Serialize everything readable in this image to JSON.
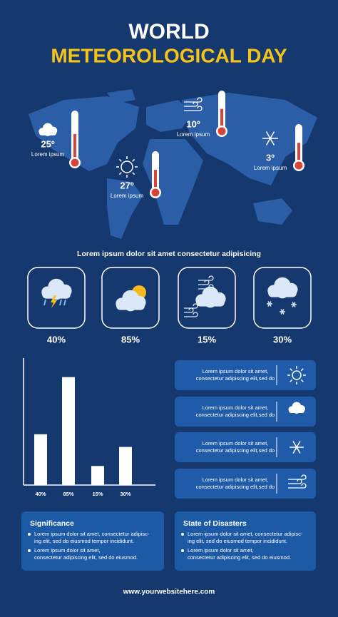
{
  "header": {
    "title_line1": "WORLD",
    "title_line2": "METEOROLOGICAL DAY"
  },
  "map_labels": [
    {
      "temp": "25º",
      "text": "Lorem ipsum"
    },
    {
      "temp": "27º",
      "text": "Lorem ipsum"
    },
    {
      "temp": "10º",
      "text": "Lorem ipsum"
    },
    {
      "temp": "3º",
      "text": "Lorem ipsum"
    }
  ],
  "subtitle": "Lorem ipsum dolor sit amet consectetur adipisicing",
  "weather_cards": [
    {
      "percent": "40%"
    },
    {
      "percent": "85%"
    },
    {
      "percent": "15%"
    },
    {
      "percent": "30%"
    }
  ],
  "chart_data": {
    "type": "bar",
    "categories": [
      "40%",
      "85%",
      "15%",
      "30%"
    ],
    "values": [
      40,
      85,
      15,
      30
    ],
    "color": "#ffffff",
    "ylim": [
      0,
      100
    ]
  },
  "info_cards": [
    {
      "lines": [
        "Lorem ipsum dolor sit amet,",
        "consectetur adipiscing elit,sed do"
      ]
    },
    {
      "lines": [
        "Lorem ipsum dolor sit amet,",
        "consectetur adipiscing elit,sed do"
      ]
    },
    {
      "lines": [
        "Lorem ipsum dolor sit amet,",
        "consectetur adipiscing elit,sed do"
      ]
    },
    {
      "lines": [
        "Lorem ipsum dolor sit amet,",
        "consectetur adipiscing elit,sed do"
      ]
    }
  ],
  "significance": {
    "title": "Significance",
    "bullets": [
      {
        "lines": [
          "Lorem ipsum dolor sit amet, consectetur adipisc-",
          "ing elit, sed do eiusmod tempor incididunt."
        ]
      },
      {
        "lines": [
          "Lorem ipsum dolor sit amet,",
          "consectetur adipiscing elit, sed do eiusmod."
        ]
      }
    ]
  },
  "disasters": {
    "title": "State of Disasters",
    "bullets": [
      {
        "lines": [
          "Lorem ipsum dolor sit amet, consectetur adipisc-",
          "ing elit, sed do eiusmod tempor incididunt."
        ]
      },
      {
        "lines": [
          "Lorem ipsum dolor sit amet,",
          "consectetur adipiscing elit, sed do eiusmod."
        ]
      }
    ]
  },
  "footer": "www.yourwebsitehere.com"
}
